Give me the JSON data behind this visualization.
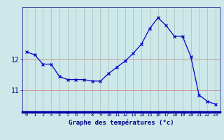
{
  "hours": [
    0,
    1,
    2,
    3,
    4,
    5,
    6,
    7,
    8,
    9,
    10,
    11,
    12,
    13,
    14,
    15,
    16,
    17,
    18,
    19,
    20,
    21,
    22,
    23
  ],
  "temps": [
    12.25,
    12.15,
    11.85,
    11.85,
    11.45,
    11.35,
    11.35,
    11.35,
    11.3,
    11.3,
    11.55,
    11.75,
    11.95,
    12.2,
    12.5,
    13.0,
    13.35,
    13.1,
    12.75,
    12.75,
    12.1,
    10.85,
    10.65,
    10.55
  ],
  "ylim": [
    10.3,
    13.7
  ],
  "yticks": [
    11,
    12
  ],
  "xlabel": "Graphe des températures (°c)",
  "line_color": "#0000cc",
  "bg_color": "#cce8e8",
  "hgrid_color": "#cc8888",
  "vgrid_color": "#aabbbb",
  "axis_color": "#000088",
  "label_color": "#000088",
  "bottom_bar_color": "#0000aa"
}
